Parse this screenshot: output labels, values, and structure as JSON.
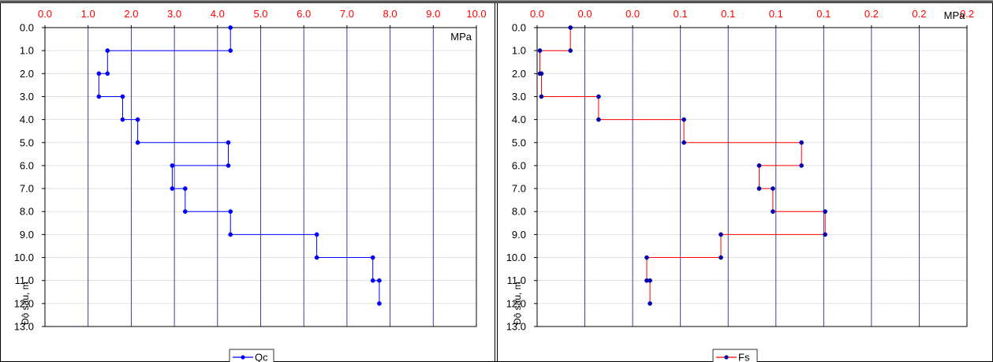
{
  "chart_data": [
    {
      "type": "line",
      "x_unit": "MPa",
      "ylabel": "Độ sâu, m",
      "x_ticks": [
        "0.0",
        "1.0",
        "2.0",
        "3.0",
        "4.0",
        "5.0",
        "6.0",
        "7.0",
        "8.0",
        "9.0",
        "10.0"
      ],
      "y_ticks": [
        "0.0",
        "1.0",
        "2.0",
        "3.0",
        "4.0",
        "5.0",
        "6.0",
        "7.0",
        "8.0",
        "9.0",
        "10.0",
        "11.0",
        "12.0",
        "13.0"
      ],
      "xlim": [
        0,
        10
      ],
      "ylim": [
        0,
        13
      ],
      "y_inverted": true,
      "x_axis_position": "top",
      "grid": "vertical",
      "legend_position": "bottom-center",
      "series": [
        {
          "name": "Qc",
          "color": "#0000ff",
          "marker_color": "#0000ff",
          "points": [
            [
              4.3,
              0
            ],
            [
              4.3,
              1
            ],
            [
              1.45,
              1
            ],
            [
              1.45,
              2
            ],
            [
              1.25,
              2
            ],
            [
              1.25,
              3
            ],
            [
              1.8,
              3
            ],
            [
              1.8,
              4
            ],
            [
              2.15,
              4
            ],
            [
              2.15,
              5
            ],
            [
              4.25,
              5
            ],
            [
              4.25,
              6
            ],
            [
              2.95,
              6
            ],
            [
              2.95,
              7
            ],
            [
              3.25,
              7
            ],
            [
              3.25,
              8
            ],
            [
              4.3,
              8
            ],
            [
              4.3,
              9
            ],
            [
              6.3,
              9
            ],
            [
              6.3,
              10
            ],
            [
              7.6,
              10
            ],
            [
              7.6,
              11
            ],
            [
              7.75,
              11
            ],
            [
              7.75,
              12
            ]
          ]
        }
      ]
    },
    {
      "type": "line",
      "x_unit": "MPa",
      "ylabel": "Độ sâu, m",
      "x_ticks": [
        "0.0",
        "0.0",
        "0.0",
        "0.1",
        "0.1",
        "0.1",
        "0.1",
        "0.2",
        "0.2",
        "0.2"
      ],
      "y_ticks": [
        "0.0",
        "1.0",
        "2.0",
        "3.0",
        "4.0",
        "5.0",
        "6.0",
        "7.0",
        "8.0",
        "9.0",
        "10.0",
        "11.0",
        "12.0",
        "13.0"
      ],
      "xlim": [
        0,
        0.2
      ],
      "ylim": [
        0,
        13
      ],
      "y_inverted": true,
      "x_axis_position": "top",
      "grid": "vertical",
      "legend_position": "bottom-center",
      "series": [
        {
          "name": "Fs",
          "color": "#ff0000",
          "marker_color": "#0000aa",
          "points": [
            [
              0.0155,
              0
            ],
            [
              0.0155,
              1
            ],
            [
              0.0013,
              1
            ],
            [
              0.0013,
              2
            ],
            [
              0.002,
              2
            ],
            [
              0.002,
              3
            ],
            [
              0.0286,
              3
            ],
            [
              0.0286,
              4
            ],
            [
              0.0683,
              4
            ],
            [
              0.0683,
              5
            ],
            [
              0.123,
              5
            ],
            [
              0.123,
              6
            ],
            [
              0.1033,
              6
            ],
            [
              0.1033,
              7
            ],
            [
              0.1097,
              7
            ],
            [
              0.1097,
              8
            ],
            [
              0.134,
              8
            ],
            [
              0.134,
              9
            ],
            [
              0.0855,
              9
            ],
            [
              0.0855,
              10
            ],
            [
              0.051,
              10
            ],
            [
              0.051,
              11
            ],
            [
              0.0525,
              11
            ],
            [
              0.0525,
              12
            ]
          ]
        }
      ]
    }
  ]
}
